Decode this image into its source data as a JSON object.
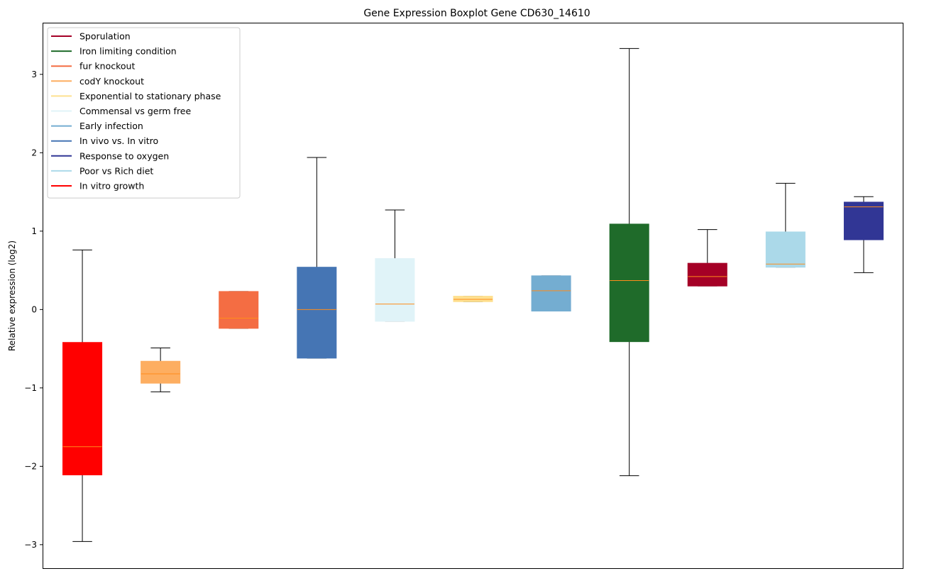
{
  "chart_data": {
    "type": "boxplot",
    "title": "Gene Expression Boxplot Gene CD630_14610",
    "xlabel": "",
    "ylabel": "Relative expression (log2)",
    "ylim": [
      -3.3,
      3.65
    ],
    "yticks": [
      -3,
      -2,
      -1,
      0,
      1,
      2,
      3
    ],
    "ytick_labels": [
      "−3",
      "−2",
      "−1",
      "0",
      "1",
      "2",
      "3"
    ],
    "legend_position": "top-left",
    "median_color": "#ff8c1a",
    "legend": [
      {
        "label": "Sporulation",
        "color": "#a50026"
      },
      {
        "label": "Iron limiting condition",
        "color": "#1f6b2a"
      },
      {
        "label": "fur knockout",
        "color": "#f46d43"
      },
      {
        "label": "codY knockout",
        "color": "#fdae61"
      },
      {
        "label": "Exponential to stationary phase",
        "color": "#fee090"
      },
      {
        "label": "Commensal vs germ free",
        "color": "#e0f3f8"
      },
      {
        "label": "Early infection",
        "color": "#74add1"
      },
      {
        "label": "In vivo vs. In vitro",
        "color": "#4575b4"
      },
      {
        "label": "Response to oxygen",
        "color": "#313695"
      },
      {
        "label": "Poor vs Rich diet",
        "color": "#abd9e9"
      },
      {
        "label": "In vitro growth",
        "color": "#ff0000"
      }
    ],
    "boxes": [
      {
        "group": "In vitro growth",
        "color": "#ff0000",
        "whisker_low": -2.96,
        "q1": -2.11,
        "median": -1.75,
        "q3": -0.42,
        "whisker_high": 0.76
      },
      {
        "group": "codY knockout",
        "color": "#fdae61",
        "whisker_low": -1.05,
        "q1": -0.94,
        "median": -0.82,
        "q3": -0.66,
        "whisker_high": -0.49
      },
      {
        "group": "fur knockout",
        "color": "#f46d43",
        "whisker_low": -0.24,
        "q1": -0.24,
        "median": -0.11,
        "q3": 0.23,
        "whisker_high": 0.23
      },
      {
        "group": "In vivo vs. In vitro",
        "color": "#4575b4",
        "whisker_low": -0.62,
        "q1": -0.62,
        "median": 0.0,
        "q3": 0.54,
        "whisker_high": 1.94
      },
      {
        "group": "Commensal vs germ free",
        "color": "#e0f3f8",
        "whisker_low": -0.15,
        "q1": -0.15,
        "median": 0.07,
        "q3": 0.65,
        "whisker_high": 1.27
      },
      {
        "group": "Exponential to stationary phase",
        "color": "#fee090",
        "whisker_low": 0.1,
        "q1": 0.1,
        "median": 0.13,
        "q3": 0.17,
        "whisker_high": 0.17
      },
      {
        "group": "Early infection",
        "color": "#74add1",
        "whisker_low": -0.02,
        "q1": -0.02,
        "median": 0.24,
        "q3": 0.43,
        "whisker_high": 0.43
      },
      {
        "group": "Iron limiting condition",
        "color": "#1f6b2a",
        "whisker_low": -2.12,
        "q1": -0.41,
        "median": 0.37,
        "q3": 1.09,
        "whisker_high": 3.33
      },
      {
        "group": "Sporulation",
        "color": "#a50026",
        "whisker_low": 0.3,
        "q1": 0.3,
        "median": 0.42,
        "q3": 0.59,
        "whisker_high": 1.02
      },
      {
        "group": "Poor vs Rich diet",
        "color": "#abd9e9",
        "whisker_low": 0.54,
        "q1": 0.54,
        "median": 0.58,
        "q3": 0.99,
        "whisker_high": 1.61
      },
      {
        "group": "Response to oxygen",
        "color": "#313695",
        "whisker_low": 0.47,
        "q1": 0.89,
        "median": 1.31,
        "q3": 1.37,
        "whisker_high": 1.44
      }
    ]
  }
}
